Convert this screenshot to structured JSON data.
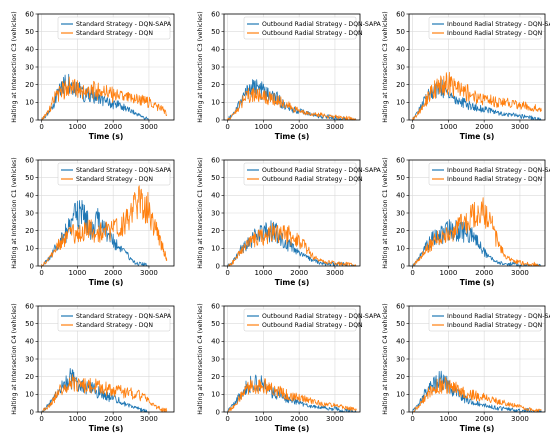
{
  "colors": {
    "dqn_sapa": "#1f77b4",
    "dqn": "#ff7f0e"
  },
  "chart_data": [
    {
      "type": "line",
      "strategy": "Standard",
      "xlabel": "Time (s)",
      "ylabel": "Halting at Intersection C3 (vehicles)",
      "xlim": [
        -100,
        3700
      ],
      "ylim": [
        0,
        60
      ],
      "xticks": [
        0,
        1000,
        2000,
        3000
      ],
      "yticks": [
        0,
        10,
        20,
        30,
        40,
        50,
        60
      ],
      "legend_position": "top-center",
      "grid": true,
      "series": [
        {
          "name": "Standard Strategy - DQN-SAPA",
          "color": "#1f77b4",
          "x": [
            0,
            200,
            400,
            600,
            800,
            1000,
            1200,
            1400,
            1600,
            1800,
            2000,
            2200,
            2400,
            2600,
            2800,
            3000
          ],
          "y": [
            0,
            4,
            12,
            20,
            22,
            18,
            14,
            15,
            12,
            10,
            9,
            8,
            6,
            4,
            2,
            0
          ]
        },
        {
          "name": "Standard Strategy - DQN",
          "color": "#ff7f0e",
          "x": [
            0,
            200,
            400,
            600,
            800,
            1000,
            1200,
            1400,
            1600,
            1800,
            2000,
            2200,
            2400,
            2600,
            2800,
            3000,
            3200,
            3400,
            3500
          ],
          "y": [
            0,
            5,
            14,
            17,
            19,
            17,
            16,
            17,
            16,
            16,
            14,
            13,
            12,
            12,
            11,
            10,
            8,
            6,
            3
          ]
        }
      ]
    },
    {
      "type": "line",
      "strategy": "Outbound Radial",
      "xlabel": "Time (s)",
      "ylabel": "Halting at Intersection C3 (vehicles)",
      "xlim": [
        -100,
        3700
      ],
      "ylim": [
        0,
        60
      ],
      "xticks": [
        0,
        1000,
        2000,
        3000
      ],
      "yticks": [
        0,
        10,
        20,
        30,
        40,
        50,
        60
      ],
      "legend_position": "top-center",
      "grid": true,
      "series": [
        {
          "name": "Outbound Radial Strategy - DQN-SAPA",
          "color": "#1f77b4",
          "x": [
            0,
            200,
            400,
            600,
            800,
            1000,
            1200,
            1400,
            1600,
            1800,
            2000,
            2200,
            2400,
            2600,
            2800,
            3000,
            3200,
            3400,
            3600
          ],
          "y": [
            0,
            5,
            12,
            17,
            18,
            16,
            13,
            12,
            8,
            6,
            5,
            4,
            3,
            2,
            2,
            1,
            1,
            0,
            0
          ]
        },
        {
          "name": "Outbound Radial Strategy - DQN",
          "color": "#ff7f0e",
          "x": [
            0,
            200,
            400,
            600,
            800,
            1000,
            1200,
            1400,
            1600,
            1800,
            2000,
            2200,
            2400,
            2600,
            2800,
            3000,
            3200,
            3400,
            3600
          ],
          "y": [
            0,
            4,
            10,
            14,
            14,
            13,
            12,
            11,
            9,
            7,
            5,
            4,
            3,
            3,
            2,
            2,
            1,
            1,
            0
          ]
        }
      ]
    },
    {
      "type": "line",
      "strategy": "Inbound Radial",
      "xlabel": "Time (s)",
      "ylabel": "Halting at Intersection C3 (vehicles)",
      "xlim": [
        -100,
        3700
      ],
      "ylim": [
        0,
        60
      ],
      "xticks": [
        0,
        1000,
        2000,
        3000
      ],
      "yticks": [
        0,
        10,
        20,
        30,
        40,
        50,
        60
      ],
      "legend_position": "top-center",
      "grid": true,
      "series": [
        {
          "name": "Inbound Radial Strategy - DQN-SAPA",
          "color": "#1f77b4",
          "x": [
            0,
            200,
            400,
            600,
            800,
            1000,
            1200,
            1400,
            1600,
            1800,
            2000,
            2200,
            2400,
            2600,
            2800,
            3000,
            3200,
            3400,
            3600
          ],
          "y": [
            0,
            6,
            13,
            17,
            18,
            15,
            12,
            10,
            8,
            7,
            6,
            5,
            4,
            3,
            3,
            2,
            2,
            1,
            0
          ]
        },
        {
          "name": "Inbound Radial Strategy - DQN",
          "color": "#ff7f0e",
          "x": [
            0,
            200,
            400,
            600,
            800,
            1000,
            1200,
            1400,
            1600,
            1800,
            2000,
            2200,
            2400,
            2600,
            2800,
            3000,
            3200,
            3400,
            3600
          ],
          "y": [
            0,
            5,
            12,
            17,
            20,
            21,
            18,
            16,
            15,
            13,
            12,
            11,
            10,
            10,
            9,
            8,
            8,
            7,
            5
          ]
        }
      ]
    },
    {
      "type": "line",
      "strategy": "Standard",
      "xlabel": "Time (s)",
      "ylabel": "Halting at Intersection C1 (vehicles)",
      "xlim": [
        -100,
        3700
      ],
      "ylim": [
        0,
        60
      ],
      "xticks": [
        0,
        1000,
        2000,
        3000
      ],
      "yticks": [
        0,
        10,
        20,
        30,
        40,
        50,
        60
      ],
      "legend_position": "top-center",
      "grid": true,
      "series": [
        {
          "name": "Standard Strategy - DQN-SAPA",
          "color": "#1f77b4",
          "x": [
            0,
            200,
            400,
            600,
            800,
            1000,
            1200,
            1400,
            1600,
            1800,
            2000,
            2200,
            2400,
            2600,
            2800,
            3000
          ],
          "y": [
            0,
            4,
            10,
            16,
            22,
            30,
            28,
            20,
            26,
            20,
            14,
            10,
            6,
            2,
            1,
            0
          ]
        },
        {
          "name": "Standard Strategy - DQN",
          "color": "#ff7f0e",
          "x": [
            0,
            200,
            400,
            600,
            800,
            1000,
            1200,
            1400,
            1600,
            1800,
            2000,
            2200,
            2400,
            2600,
            2800,
            3000,
            3200,
            3400,
            3500
          ],
          "y": [
            0,
            4,
            10,
            15,
            18,
            18,
            20,
            20,
            19,
            20,
            20,
            23,
            27,
            33,
            38,
            32,
            20,
            10,
            3
          ]
        }
      ]
    },
    {
      "type": "line",
      "strategy": "Outbound Radial",
      "xlabel": "Time (s)",
      "ylabel": "Halting at Intersection C1 (vehicles)",
      "xlim": [
        -100,
        3700
      ],
      "ylim": [
        0,
        60
      ],
      "xticks": [
        0,
        1000,
        2000,
        3000
      ],
      "yticks": [
        0,
        10,
        20,
        30,
        40,
        50,
        60
      ],
      "legend_position": "top-center",
      "grid": true,
      "series": [
        {
          "name": "Outbound Radial Strategy - DQN-SAPA",
          "color": "#1f77b4",
          "x": [
            0,
            200,
            400,
            600,
            800,
            1000,
            1200,
            1400,
            1600,
            1800,
            2000,
            2200,
            2400,
            2600,
            2800,
            3000,
            3200,
            3400,
            3600
          ],
          "y": [
            0,
            4,
            10,
            14,
            17,
            18,
            20,
            18,
            14,
            10,
            7,
            5,
            3,
            2,
            1,
            1,
            1,
            0,
            0
          ]
        },
        {
          "name": "Outbound Radial Strategy - DQN",
          "color": "#ff7f0e",
          "x": [
            0,
            200,
            400,
            600,
            800,
            1000,
            1200,
            1400,
            1600,
            1800,
            2000,
            2200,
            2400,
            2600,
            2800,
            3000,
            3200,
            3400,
            3600
          ],
          "y": [
            0,
            3,
            9,
            13,
            15,
            17,
            19,
            19,
            18,
            17,
            15,
            10,
            5,
            3,
            2,
            2,
            1,
            1,
            0
          ]
        }
      ]
    },
    {
      "type": "line",
      "strategy": "Inbound Radial",
      "xlabel": "Time (s)",
      "ylabel": "Halting at Intersection C1 (vehicles)",
      "xlim": [
        -100,
        3700
      ],
      "ylim": [
        0,
        60
      ],
      "xticks": [
        0,
        1000,
        2000,
        3000
      ],
      "yticks": [
        0,
        10,
        20,
        30,
        40,
        50,
        60
      ],
      "legend_position": "top-center",
      "grid": true,
      "series": [
        {
          "name": "Inbound Radial Strategy - DQN-SAPA",
          "color": "#1f77b4",
          "x": [
            0,
            200,
            400,
            600,
            800,
            1000,
            1200,
            1400,
            1600,
            1800,
            2000,
            2200,
            2400,
            2600,
            2800,
            3000,
            3200,
            3400,
            3600
          ],
          "y": [
            0,
            5,
            12,
            16,
            18,
            20,
            20,
            19,
            18,
            14,
            8,
            4,
            2,
            1,
            1,
            0,
            0,
            0,
            0
          ]
        },
        {
          "name": "Inbound Radial Strategy - DQN",
          "color": "#ff7f0e",
          "x": [
            0,
            200,
            400,
            600,
            800,
            1000,
            1200,
            1400,
            1600,
            1800,
            2000,
            2200,
            2400,
            2600,
            2800,
            3000,
            3200,
            3400,
            3600
          ],
          "y": [
            0,
            4,
            10,
            14,
            16,
            18,
            20,
            23,
            26,
            30,
            30,
            24,
            12,
            5,
            3,
            2,
            1,
            1,
            0
          ]
        }
      ]
    },
    {
      "type": "line",
      "strategy": "Standard",
      "xlabel": "Time (s)",
      "ylabel": "Halting at Intersection C4 (vehicles)",
      "xlim": [
        -100,
        3700
      ],
      "ylim": [
        0,
        60
      ],
      "xticks": [
        0,
        1000,
        2000,
        3000
      ],
      "yticks": [
        0,
        10,
        20,
        30,
        40,
        50,
        60
      ],
      "legend_position": "top-center",
      "grid": true,
      "series": [
        {
          "name": "Standard Strategy - DQN-SAPA",
          "color": "#1f77b4",
          "x": [
            0,
            200,
            400,
            600,
            800,
            1000,
            1200,
            1400,
            1600,
            1800,
            2000,
            2200,
            2400,
            2600,
            2800,
            3000
          ],
          "y": [
            0,
            4,
            10,
            15,
            19,
            17,
            14,
            13,
            11,
            9,
            8,
            6,
            4,
            3,
            1,
            0
          ]
        },
        {
          "name": "Standard Strategy - DQN",
          "color": "#ff7f0e",
          "x": [
            0,
            200,
            400,
            600,
            800,
            1000,
            1200,
            1400,
            1600,
            1800,
            2000,
            2200,
            2400,
            2600,
            2800,
            3000,
            3200,
            3400,
            3500
          ],
          "y": [
            0,
            3,
            9,
            14,
            16,
            16,
            15,
            15,
            14,
            13,
            12,
            12,
            11,
            10,
            9,
            6,
            3,
            1,
            1
          ]
        }
      ]
    },
    {
      "type": "line",
      "strategy": "Outbound Radial",
      "xlabel": "Time (s)",
      "ylabel": "Halting at Intersection C4 (vehicles)",
      "xlim": [
        -100,
        3700
      ],
      "ylim": [
        0,
        60
      ],
      "xticks": [
        0,
        1000,
        2000,
        3000
      ],
      "yticks": [
        0,
        10,
        20,
        30,
        40,
        50,
        60
      ],
      "legend_position": "top-center",
      "grid": true,
      "series": [
        {
          "name": "Outbound Radial Strategy - DQN-SAPA",
          "color": "#1f77b4",
          "x": [
            0,
            200,
            400,
            600,
            800,
            1000,
            1200,
            1400,
            1600,
            1800,
            2000,
            2200,
            2400,
            2600,
            2800,
            3000,
            3200,
            3400,
            3600
          ],
          "y": [
            0,
            5,
            11,
            15,
            17,
            15,
            12,
            10,
            8,
            7,
            5,
            4,
            3,
            3,
            2,
            2,
            1,
            1,
            0
          ]
        },
        {
          "name": "Outbound Radial Strategy - DQN",
          "color": "#ff7f0e",
          "x": [
            0,
            200,
            400,
            600,
            800,
            1000,
            1200,
            1400,
            1600,
            1800,
            2000,
            2200,
            2400,
            2600,
            2800,
            3000,
            3200,
            3400,
            3600
          ],
          "y": [
            0,
            4,
            10,
            14,
            15,
            15,
            13,
            12,
            10,
            9,
            8,
            7,
            6,
            5,
            4,
            4,
            3,
            2,
            1
          ]
        }
      ]
    },
    {
      "type": "line",
      "strategy": "Inbound Radial",
      "xlabel": "Time (s)",
      "ylabel": "Halting at Intersection C4 (vehicles)",
      "xlim": [
        -100,
        3700
      ],
      "ylim": [
        0,
        60
      ],
      "xticks": [
        0,
        1000,
        2000,
        3000
      ],
      "yticks": [
        0,
        10,
        20,
        30,
        40,
        50,
        60
      ],
      "legend_position": "top-center",
      "grid": true,
      "series": [
        {
          "name": "Inbound Radial Strategy - DQN-SAPA",
          "color": "#1f77b4",
          "x": [
            0,
            200,
            400,
            600,
            800,
            1000,
            1200,
            1400,
            1600,
            1800,
            2000,
            2200,
            2400,
            2600,
            2800,
            3000,
            3200,
            3400,
            3600
          ],
          "y": [
            0,
            5,
            12,
            16,
            18,
            15,
            11,
            8,
            6,
            5,
            4,
            3,
            2,
            2,
            1,
            1,
            1,
            0,
            0
          ]
        },
        {
          "name": "Inbound Radial Strategy - DQN",
          "color": "#ff7f0e",
          "x": [
            0,
            200,
            400,
            600,
            800,
            1000,
            1200,
            1400,
            1600,
            1800,
            2000,
            2200,
            2400,
            2600,
            2800,
            3000,
            3200,
            3400,
            3600
          ],
          "y": [
            0,
            4,
            10,
            14,
            15,
            15,
            13,
            12,
            10,
            9,
            8,
            7,
            6,
            5,
            4,
            3,
            2,
            1,
            1
          ]
        }
      ]
    }
  ]
}
